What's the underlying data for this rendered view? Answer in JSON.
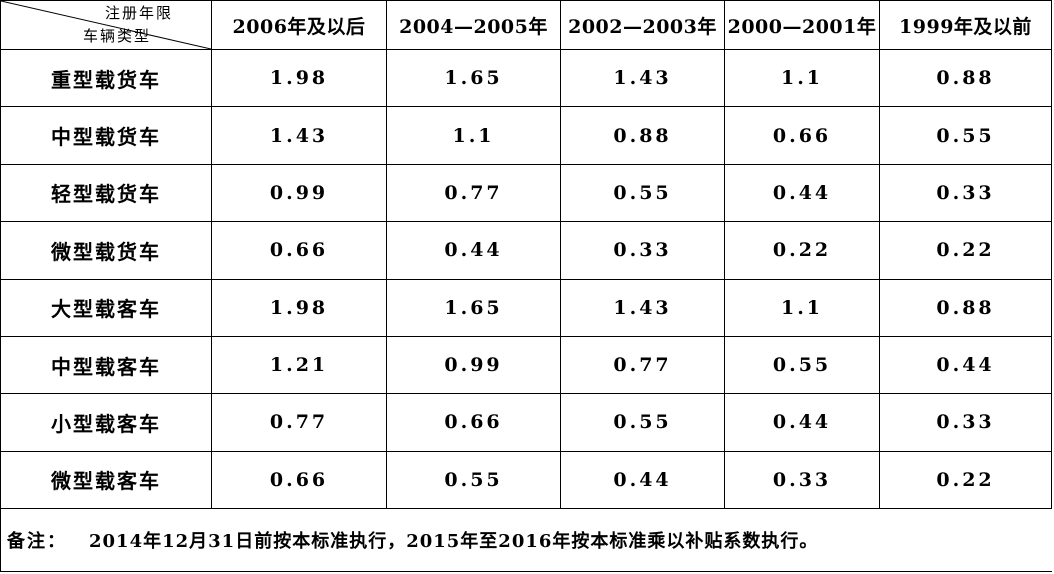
{
  "table": {
    "corner": {
      "top_label": "注册年限",
      "bottom_label": "车辆类型"
    },
    "columns": [
      "2006年及以后",
      "2004—2005年",
      "2002—2003年",
      "2000—2001年",
      "1999年及以前"
    ],
    "rows": [
      {
        "type": "重型载货车",
        "values": [
          "1.98",
          "1.65",
          "1.43",
          "1.1",
          "0.88"
        ]
      },
      {
        "type": "中型载货车",
        "values": [
          "1.43",
          "1.1",
          "0.88",
          "0.66",
          "0.55"
        ]
      },
      {
        "type": "轻型载货车",
        "values": [
          "0.99",
          "0.77",
          "0.55",
          "0.44",
          "0.33"
        ]
      },
      {
        "type": "微型载货车",
        "values": [
          "0.66",
          "0.44",
          "0.33",
          "0.22",
          "0.22"
        ]
      },
      {
        "type": "大型载客车",
        "values": [
          "1.98",
          "1.65",
          "1.43",
          "1.1",
          "0.88"
        ]
      },
      {
        "type": "中型载客车",
        "values": [
          "1.21",
          "0.99",
          "0.77",
          "0.55",
          "0.44"
        ]
      },
      {
        "type": "小型载客车",
        "values": [
          "0.77",
          "0.66",
          "0.55",
          "0.44",
          "0.33"
        ]
      },
      {
        "type": "微型载客车",
        "values": [
          "0.66",
          "0.55",
          "0.44",
          "0.33",
          "0.22"
        ]
      }
    ]
  },
  "note": {
    "label": "备注：",
    "text": "2014年12月31日前按本标准执行，2015年至2016年按本标准乘以补贴系数执行。"
  }
}
